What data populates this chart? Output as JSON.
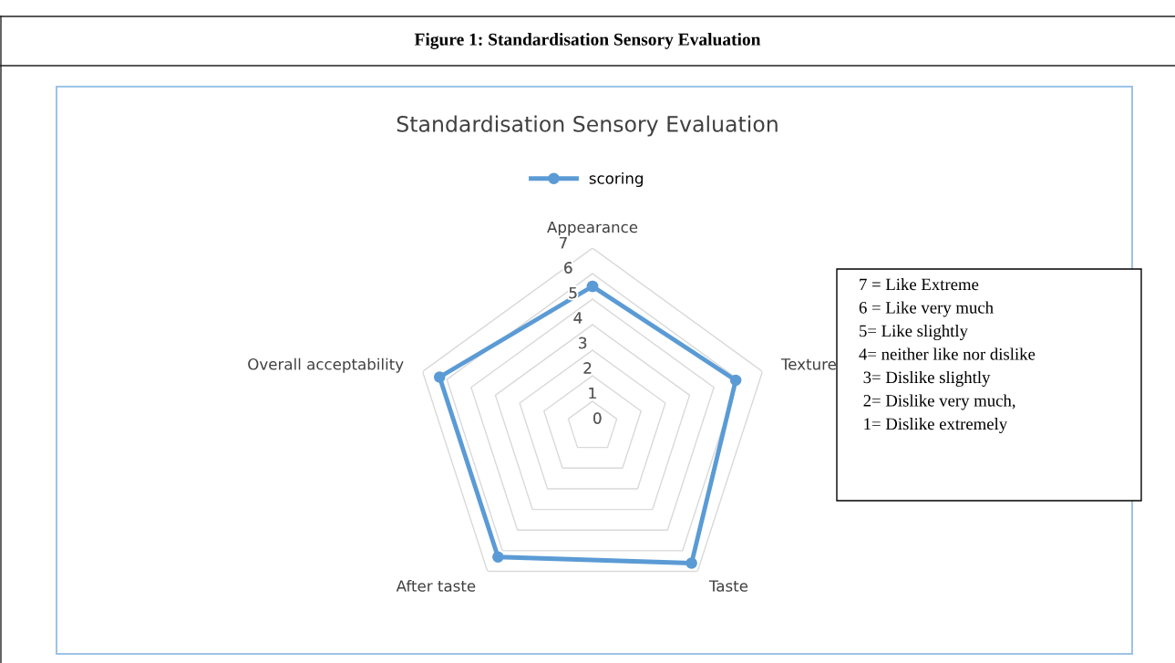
{
  "chart_data": {
    "type": "radar",
    "title": "Standardisation Sensory Evaluation",
    "categories": [
      "Appearance",
      "Texture",
      "Taste",
      "After taste",
      "Overall acceptability"
    ],
    "series": [
      {
        "name": "scoring",
        "color": "#5b9bd5",
        "values": [
          5.5,
          5.9,
          6.6,
          6.3,
          6.3
        ]
      }
    ],
    "ylim": [
      0,
      7
    ],
    "yticks": [
      0,
      1,
      2,
      3,
      4,
      5,
      6,
      7
    ],
    "grid": true,
    "legend": "top",
    "marker": "circle",
    "line_style": "solid",
    "annotations": [
      "Figure 1: Standardisation Sensory Evaluation",
      "7 = Like Extreme\n6 = Like very much\n5= Like slightly\n4= neither like nor dislike\n 3= Dislike slightly\n 2= Dislike very much,\n 1= Dislike extremely"
    ]
  }
}
